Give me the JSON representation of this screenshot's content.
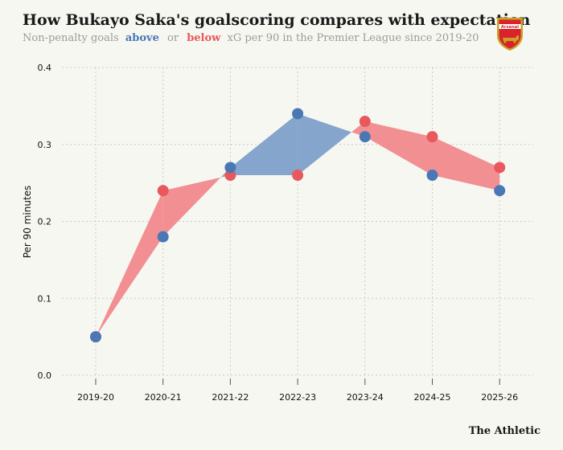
{
  "header": {
    "title": "How Bukayo Saka's goalscoring compares with expectation",
    "subtitle_prefix": "Non-penalty goals",
    "subtitle_above": "above",
    "subtitle_or": "or",
    "subtitle_below": "below",
    "subtitle_suffix": "xG per 90 in the Premier League since 2019-20"
  },
  "badge": {
    "text": "Arsenal",
    "icon": "arsenal-crest-icon",
    "color": "#d9232b",
    "trim": "#c9a227"
  },
  "brand": {
    "text": "The Athletic"
  },
  "colors": {
    "above": "#4a78b5",
    "below": "#e8585c",
    "above_fill": "#86a5cc",
    "below_fill": "#f28f92",
    "grid": "#c9c9c9"
  },
  "chart_data": {
    "type": "line",
    "title": "How Bukayo Saka's goalscoring compares with expectation",
    "ylabel": "Per 90 minutes",
    "xlabel": "",
    "categories": [
      "2019-20",
      "2020-21",
      "2021-22",
      "2022-23",
      "2023-24",
      "2024-25",
      "2025-26"
    ],
    "ylim": [
      0,
      0.4
    ],
    "yticks": [
      "0.0",
      "0.1",
      "0.2",
      "0.3",
      "0.4"
    ],
    "grid": true,
    "series": [
      {
        "name": "Non-penalty goals",
        "values": [
          0.05,
          0.18,
          0.27,
          0.34,
          0.31,
          0.26,
          0.24
        ]
      },
      {
        "name": "xG",
        "values": [
          0.05,
          0.24,
          0.26,
          0.26,
          0.33,
          0.31,
          0.27
        ]
      }
    ]
  }
}
